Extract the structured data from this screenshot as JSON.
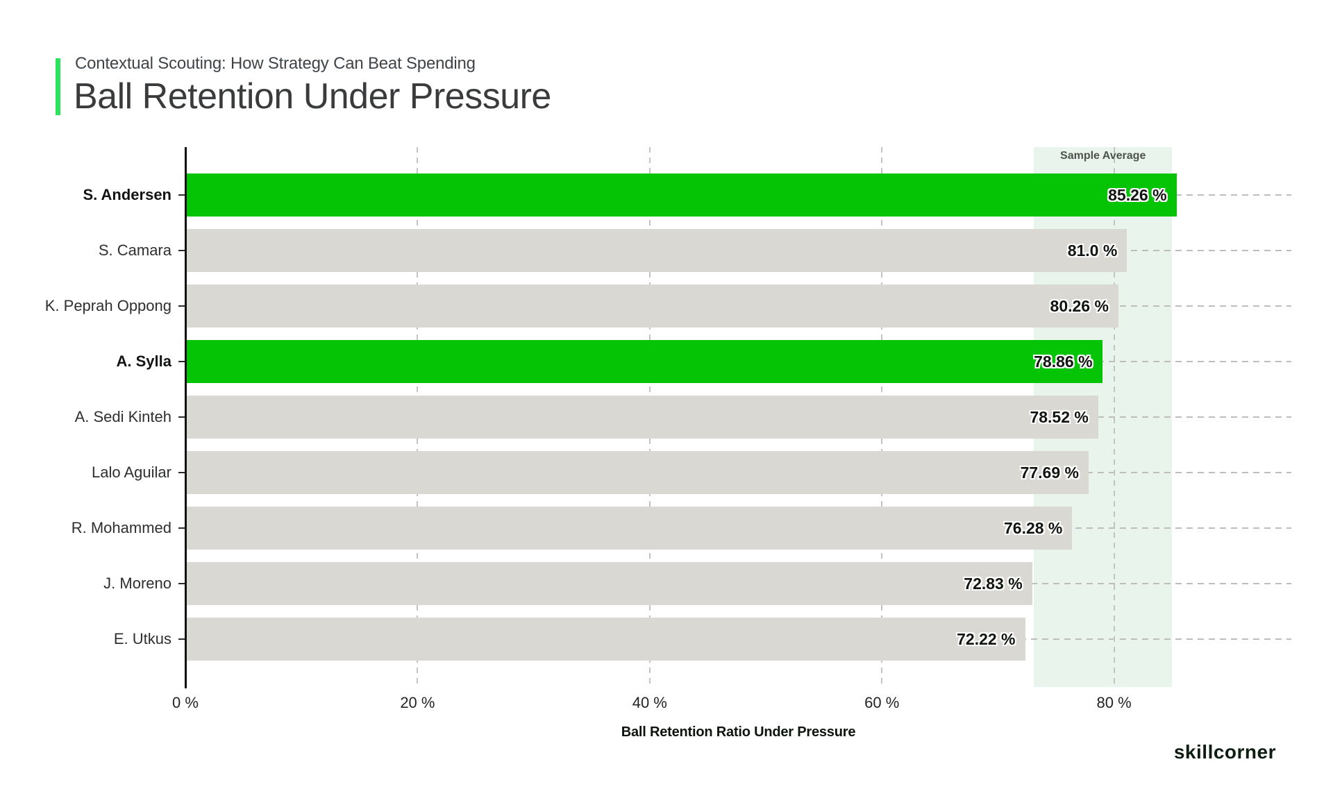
{
  "header": {
    "eyebrow": "Contextual Scouting: How Strategy Can Beat Spending",
    "title": "Ball Retention Under Pressure"
  },
  "chart_data": {
    "type": "bar",
    "orientation": "horizontal",
    "title": "Ball Retention Under Pressure",
    "xlabel": "Ball Retention Ratio Under Pressure",
    "xlim": [
      0,
      95.4
    ],
    "x_ticks": [
      {
        "value": 0,
        "label": "0 %"
      },
      {
        "value": 20,
        "label": "20 %"
      },
      {
        "value": 40,
        "label": "40 %"
      },
      {
        "value": 60,
        "label": "60 %"
      },
      {
        "value": 80,
        "label": "80 %"
      }
    ],
    "grid": "dashed",
    "categories": [
      "S. Andersen",
      "S. Camara",
      "K. Peprah Oppong",
      "A. Sylla",
      "A. Sedi Kinteh",
      "Lalo Aguilar",
      "R. Mohammed",
      "J. Moreno",
      "E. Utkus"
    ],
    "values": [
      85.26,
      81.0,
      80.26,
      78.86,
      78.52,
      77.69,
      76.28,
      72.83,
      72.22
    ],
    "value_labels": [
      "85.26 %",
      "81.0 %",
      "80.26 %",
      "78.86 %",
      "78.52 %",
      "77.69 %",
      "76.28 %",
      "72.83 %",
      "72.22 %"
    ],
    "highlighted": [
      true,
      false,
      false,
      true,
      false,
      false,
      false,
      false,
      false
    ],
    "sample_average_band": {
      "label": "Sample Average",
      "from": 73.1,
      "to": 85.0
    },
    "colors": {
      "highlight_bar": "#05c405",
      "default_bar": "#d9d8d3",
      "band": "#e9f5ec",
      "accent": "#2ee35c",
      "axis": "#101010",
      "gridline": "#bdbdbd"
    }
  },
  "footer": {
    "logo_text": "skillcorner"
  }
}
